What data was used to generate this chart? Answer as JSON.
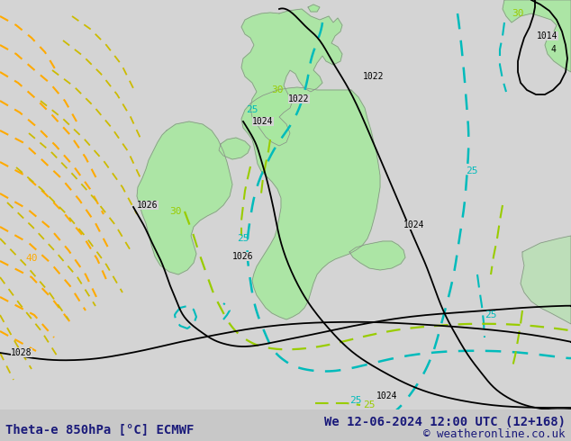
{
  "title_left": "Theta-e 850hPa [°C] ECMWF",
  "title_right": "We 12-06-2024 12:00 UTC (12+168)",
  "copyright": "© weatheronline.co.uk",
  "bg_color": "#d4d4d4",
  "green_fill_color": "#a8e8a0",
  "coast_color": "#888888",
  "black_line_color": "#000000",
  "orange_dash_color": "#ffaa00",
  "yellow_dash_color": "#ccbb00",
  "teal_dash_color": "#00bbbb",
  "lime_dash_color": "#99cc00",
  "label_color_black": "#000000",
  "label_color_teal": "#00bbbb",
  "label_color_lime": "#99cc00",
  "label_color_orange": "#ffaa00",
  "font_size_bottom": 10,
  "font_size_copyright": 9,
  "font_size_label": 8
}
